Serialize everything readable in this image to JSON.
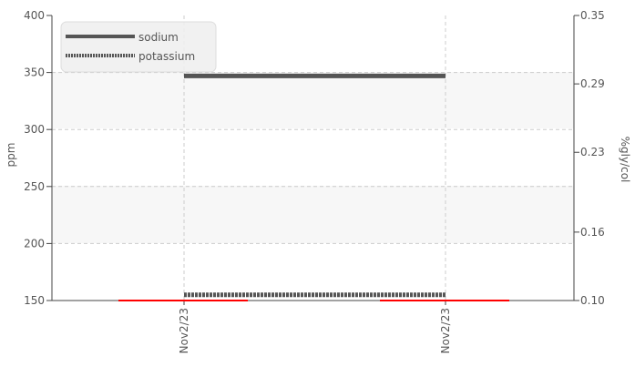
{
  "chart_data": {
    "type": "line",
    "categories": [
      "Nov2/23",
      "Nov2/23"
    ],
    "y_left": {
      "label": "ppm",
      "ticks": [
        "400",
        "350",
        "300",
        "250",
        "200",
        "150"
      ],
      "range": [
        150,
        400
      ]
    },
    "y_right": {
      "label": "%gly/col",
      "ticks": [
        "0.35",
        "0.29",
        "0.23",
        "0.16",
        "0.10"
      ],
      "range": [
        0.1,
        0.35
      ]
    },
    "grid": true,
    "legend": {
      "placement": "top-left"
    },
    "series": [
      {
        "name": "sodium",
        "axis": "left",
        "style": "solid",
        "color": "#555555",
        "values": [
          347,
          347
        ]
      },
      {
        "name": "potassium",
        "axis": "left",
        "style": "dotted",
        "color": "#555555",
        "values": [
          155,
          155
        ]
      },
      {
        "name": "",
        "axis": "left",
        "style": "solid",
        "color": "#ff0000",
        "segments": true,
        "values": [
          150,
          150
        ]
      }
    ]
  }
}
